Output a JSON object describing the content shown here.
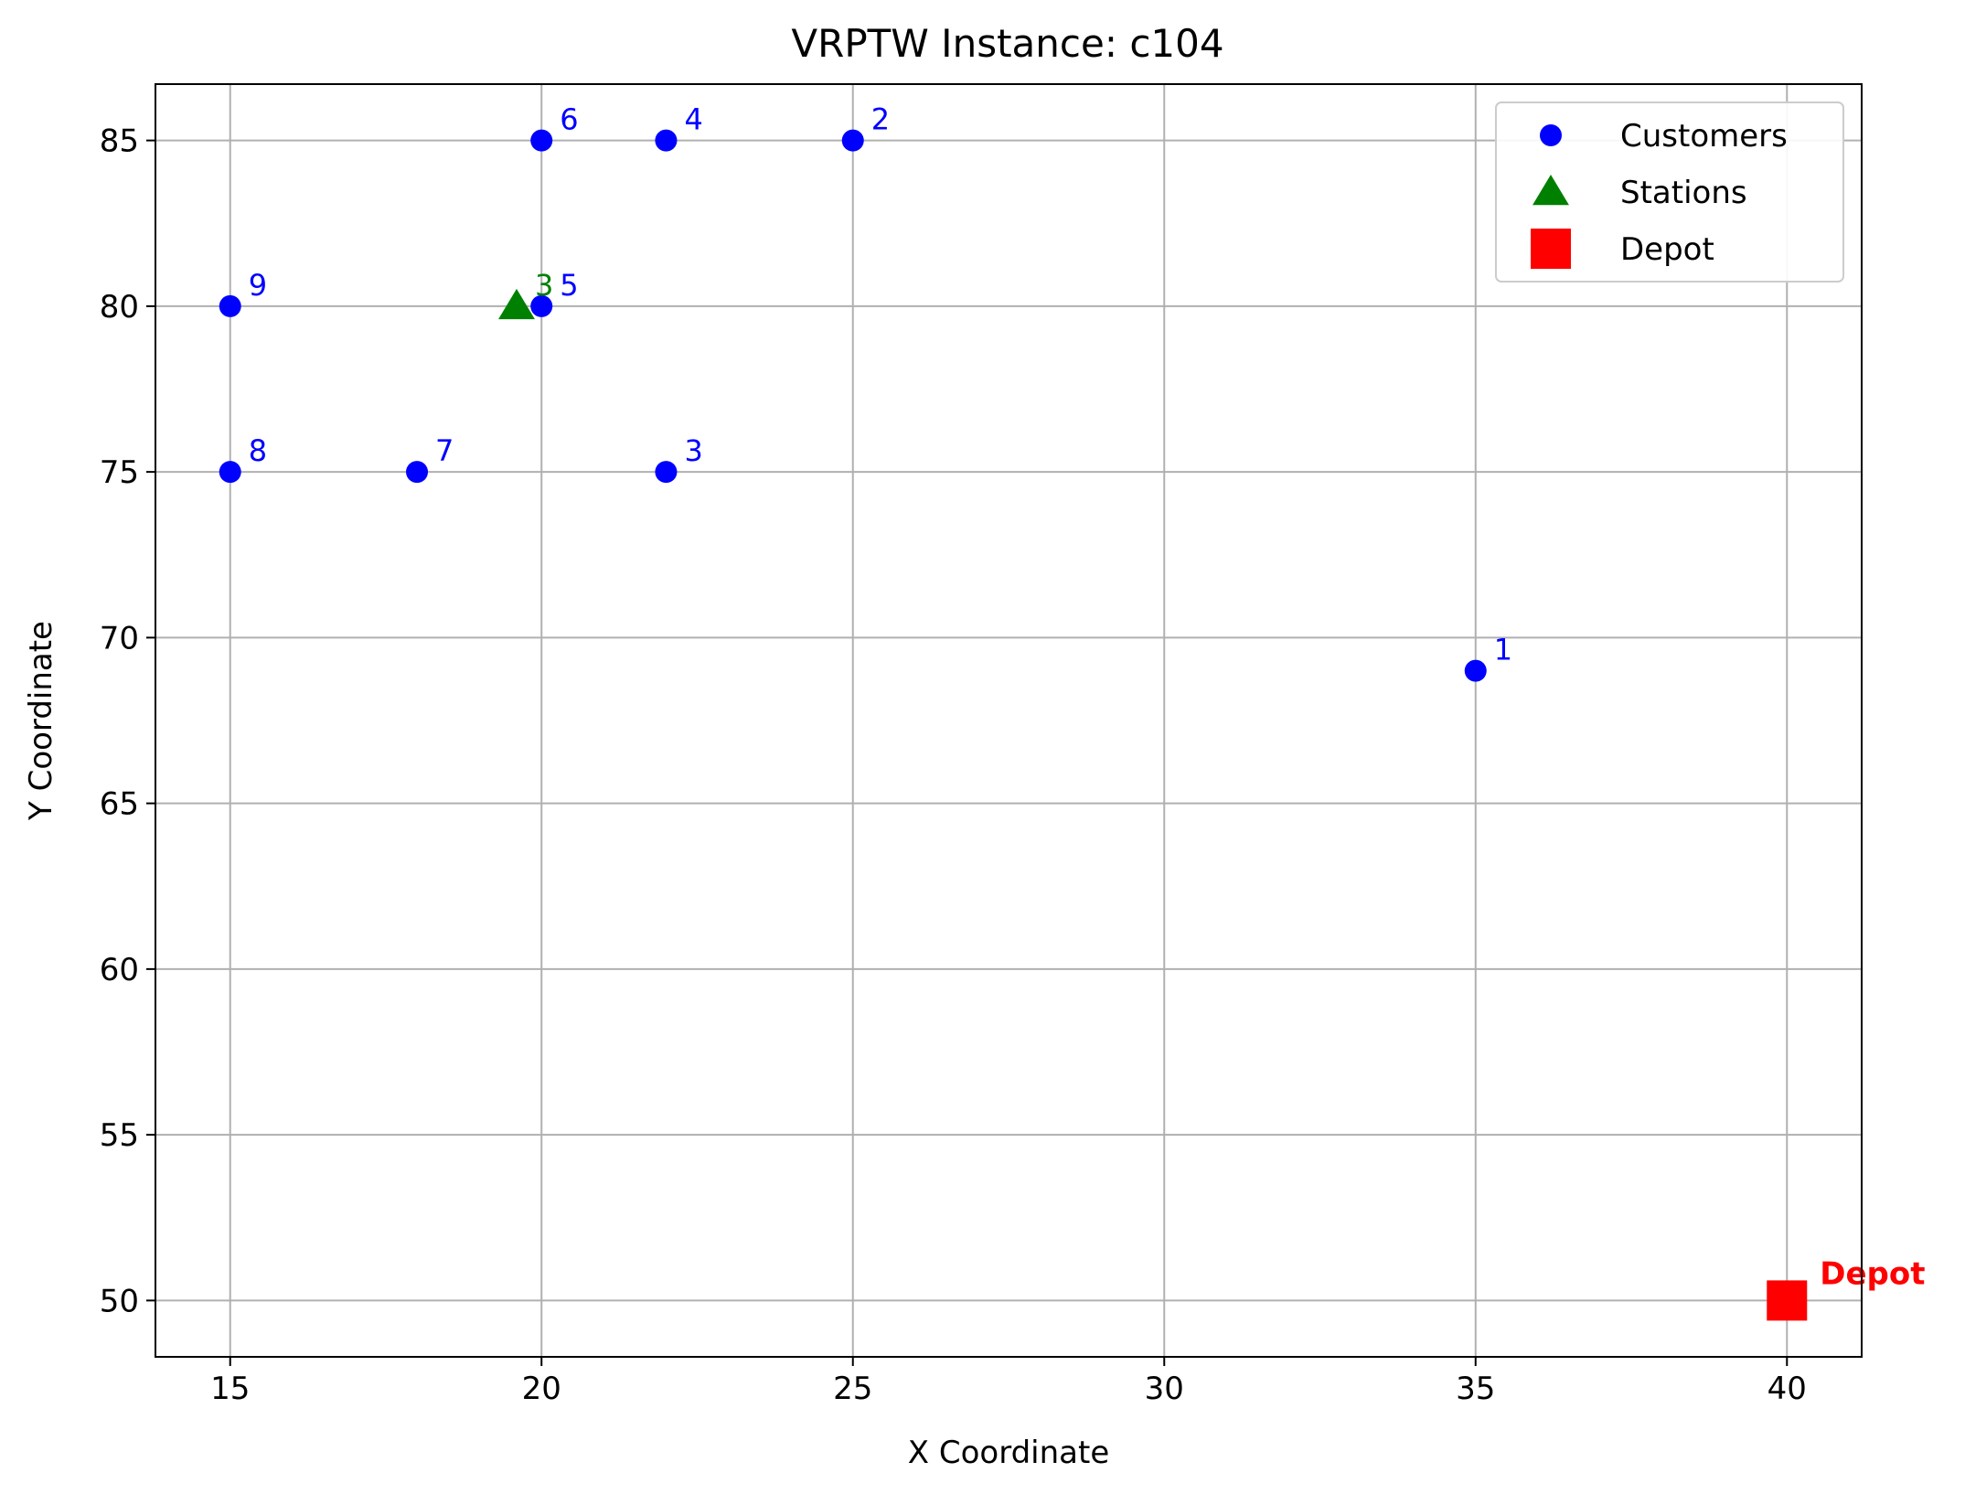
{
  "chart_data": {
    "type": "scatter",
    "title": "VRPTW Instance: c104",
    "xlabel": "X Coordinate",
    "ylabel": "Y Coordinate",
    "xlim": [
      13.8,
      41.2
    ],
    "ylim": [
      48.3,
      86.7
    ],
    "xticks": [
      15,
      20,
      25,
      30,
      35,
      40
    ],
    "yticks": [
      50,
      55,
      60,
      65,
      70,
      75,
      80,
      85
    ],
    "grid": true,
    "legend_position": "top-right",
    "series": [
      {
        "name": "Customers",
        "marker": "circle",
        "color": "#0000ff",
        "points": [
          {
            "label": "1",
            "x": 35,
            "y": 69
          },
          {
            "label": "2",
            "x": 25,
            "y": 85
          },
          {
            "label": "3",
            "x": 22,
            "y": 75
          },
          {
            "label": "4",
            "x": 22,
            "y": 85
          },
          {
            "label": "5",
            "x": 20,
            "y": 80
          },
          {
            "label": "6",
            "x": 20,
            "y": 85
          },
          {
            "label": "7",
            "x": 18,
            "y": 75
          },
          {
            "label": "8",
            "x": 15,
            "y": 75
          },
          {
            "label": "9",
            "x": 15,
            "y": 80
          }
        ]
      },
      {
        "name": "Stations",
        "marker": "triangle",
        "color": "#008000",
        "points": [
          {
            "label": "3",
            "x": 19.6,
            "y": 80
          }
        ]
      },
      {
        "name": "Depot",
        "marker": "square",
        "color": "#ff0000",
        "points": [
          {
            "label": "Depot",
            "x": 40,
            "y": 50
          }
        ]
      }
    ]
  }
}
